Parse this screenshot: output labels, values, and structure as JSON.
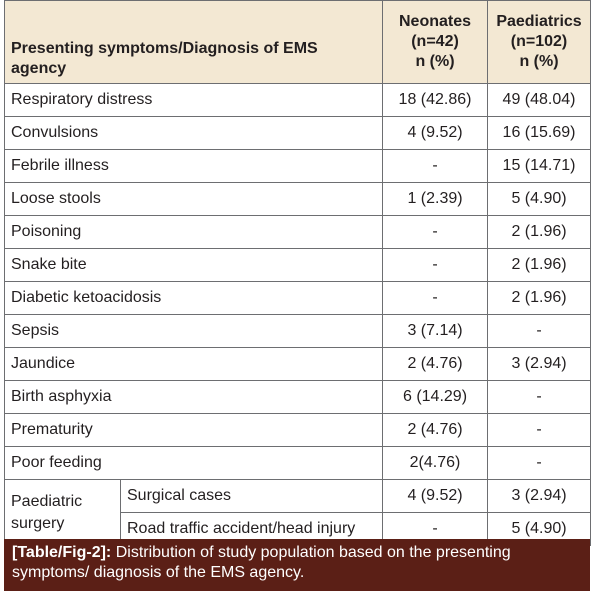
{
  "table": {
    "header": [
      [
        "Presenting symptoms/Diagnosis of EMS",
        "agency"
      ],
      [
        "Neonates",
        "(n=42)",
        "n (%)"
      ],
      [
        "Paediatrics",
        "(n=102)",
        "n (%)"
      ]
    ],
    "rows": [
      [
        "Respiratory distress",
        "18 (42.86)",
        "49 (48.04)"
      ],
      [
        "Convulsions",
        "4 (9.52)",
        "16 (15.69)"
      ],
      [
        "Febrile illness",
        "-",
        "15 (14.71)"
      ],
      [
        "Loose stools",
        "1 (2.39)",
        "5 (4.90)"
      ],
      [
        "Poisoning",
        "-",
        "2 (1.96)"
      ],
      [
        "Snake bite",
        "-",
        "2 (1.96)"
      ],
      [
        "Diabetic ketoacidosis",
        "-",
        "2 (1.96)"
      ],
      [
        "Sepsis",
        "3 (7.14)",
        "-"
      ],
      [
        "Jaundice",
        "2 (4.76)",
        "3 (2.94)"
      ],
      [
        "Birth asphyxia",
        "6 (14.29)",
        "-"
      ],
      [
        "Prematurity",
        "2 (4.76)",
        "-"
      ],
      [
        "Poor feeding",
        "2(4.76)",
        "-"
      ]
    ],
    "group": {
      "label": [
        "Paediatric",
        "surgery"
      ],
      "rows": [
        [
          "Surgical cases",
          "4 (9.52)",
          "3 (2.94)"
        ],
        [
          "Road traffic accident/head injury",
          "-",
          "5 (4.90)"
        ]
      ]
    }
  },
  "caption": {
    "tag": "[Table/Fig-2]:",
    "text": "Distribution of study population based on the presenting symptoms/ diagnosis of the EMS agency."
  }
}
